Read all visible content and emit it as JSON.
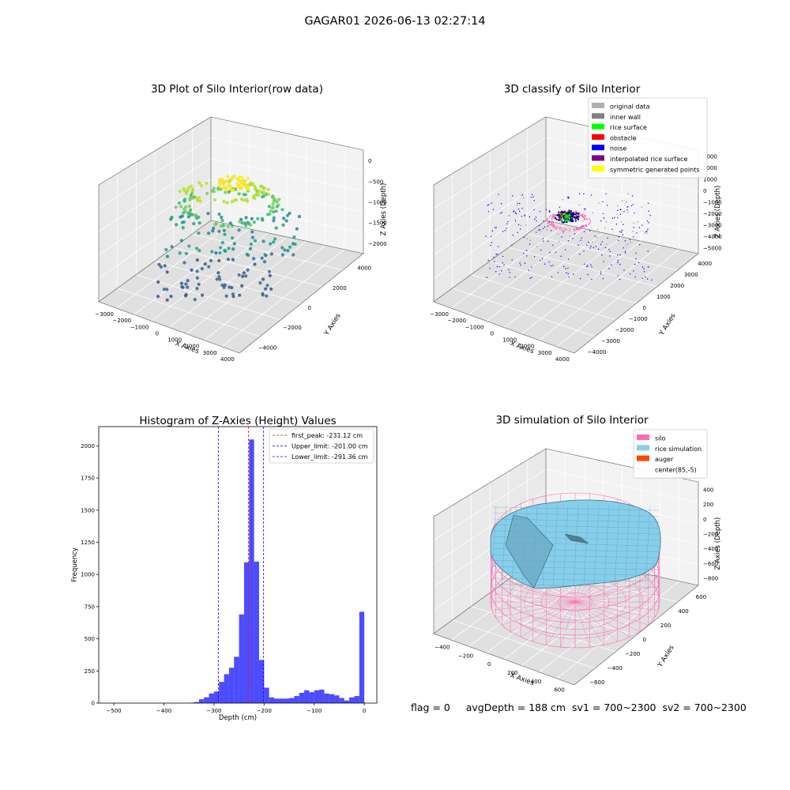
{
  "suptitle": "GAGAR01 2026-06-13 02:27:14",
  "panels": {
    "raw3d": {
      "title": "3D Plot of Silo Interior(row data)",
      "xlabel": "X Axies",
      "ylabel": "Y Axies",
      "zlabel": "Z Axies (Depth)",
      "xticks": [
        "−3000",
        "−2000",
        "−1000",
        "0",
        "1000",
        "2000",
        "3000",
        "4000"
      ],
      "yticks": [
        "−4000",
        "−2000",
        "0",
        "2000",
        "4000"
      ],
      "zticks": [
        "−2000",
        "−1500",
        "−1000",
        "−500",
        "0"
      ]
    },
    "classify3d": {
      "title": "3D classify of Silo Interior",
      "xlabel": "X Axies",
      "ylabel": "Y Axies",
      "zlabel": "Z Axies (Depth)",
      "xticks": [
        "−3000",
        "−2000",
        "−1000",
        "0",
        "1000",
        "2000",
        "3000",
        "4000"
      ],
      "yticks": [
        "−4000",
        "−3000",
        "−2000",
        "−1000",
        "0",
        "1000",
        "2000",
        "3000",
        "4000"
      ],
      "zticks": [
        "−5000",
        "−4000",
        "−3000",
        "−2000",
        "−1000",
        "0",
        "1000",
        "2000",
        "3000"
      ],
      "legend": [
        {
          "label": "original data",
          "color": "#b0b0b0"
        },
        {
          "label": "inner wall",
          "color": "#808080"
        },
        {
          "label": "rice surface",
          "color": "#00ff00"
        },
        {
          "label": "obstacle",
          "color": "#ff0000"
        },
        {
          "label": "noise",
          "color": "#0000ff"
        },
        {
          "label": "interpolated rice surface",
          "color": "#800080"
        },
        {
          "label": "symmetric generated points",
          "color": "#ffff00"
        }
      ]
    },
    "sim3d": {
      "title": "3D simulation of Silo Interior",
      "xlabel": "X Axies",
      "ylabel": "Y Axies",
      "zlabel": "Z Axies (Depth)",
      "xticks": [
        "−400",
        "−200",
        "0",
        "200",
        "400",
        "600"
      ],
      "yticks": [
        "−600",
        "−400",
        "−200",
        "0",
        "200",
        "400",
        "600"
      ],
      "zticks": [
        "−800",
        "−600",
        "−400",
        "−200",
        "0",
        "200",
        "400"
      ],
      "legend": [
        {
          "label": "silo",
          "color": "#ff69b4"
        },
        {
          "label": "rice simulation",
          "color": "#87ceeb"
        },
        {
          "label": "auger",
          "color": "#ff4500"
        },
        {
          "label": "center(85,-5)",
          "color": ""
        }
      ]
    }
  },
  "status": {
    "flag": "flag = 0",
    "avg": "avgDepth = 188 cm",
    "sv1": "sv1 = 700~2300",
    "sv2": "sv2 = 700~2300"
  },
  "chart_data": {
    "type": "bar",
    "title": "Histogram of Z-Axies (Height) Values",
    "xlabel": "Depth (cm)",
    "ylabel": "Frequency",
    "xlim": [
      -530,
      25
    ],
    "ylim": [
      0,
      2150
    ],
    "xticks": [
      -500,
      -400,
      -300,
      -200,
      -100,
      0
    ],
    "xtick_labels": [
      "−500",
      "−400",
      "−300",
      "−200",
      "−100",
      "0"
    ],
    "yticks": [
      0,
      250,
      500,
      750,
      1000,
      1250,
      1500,
      1750,
      2000
    ],
    "bin_width": 10,
    "bins_start": [
      -350,
      -340,
      -330,
      -320,
      -310,
      -300,
      -290,
      -280,
      -270,
      -260,
      -250,
      -240,
      -230,
      -220,
      -210,
      -200,
      -190,
      -180,
      -170,
      -160,
      -150,
      -140,
      -130,
      -120,
      -110,
      -100,
      -90,
      -80,
      -70,
      -60,
      -50,
      -40,
      -30,
      -20,
      -10
    ],
    "values": [
      3,
      8,
      30,
      45,
      75,
      90,
      165,
      225,
      275,
      360,
      690,
      1095,
      2050,
      1100,
      335,
      120,
      45,
      35,
      35,
      35,
      40,
      55,
      80,
      100,
      85,
      100,
      105,
      75,
      70,
      60,
      40,
      20,
      45,
      55,
      710
    ],
    "bar_color": "#0000ff",
    "vlines": [
      {
        "label": "first_peak: -231.12 cm",
        "x": -231.12,
        "color": "#ff0000"
      },
      {
        "label": "Upper_limit: -201.00 cm",
        "x": -201.0,
        "color": "#0000ff"
      },
      {
        "label": "Lower_limit: -291.36 cm",
        "x": -291.36,
        "color": "#0000ff"
      }
    ]
  }
}
